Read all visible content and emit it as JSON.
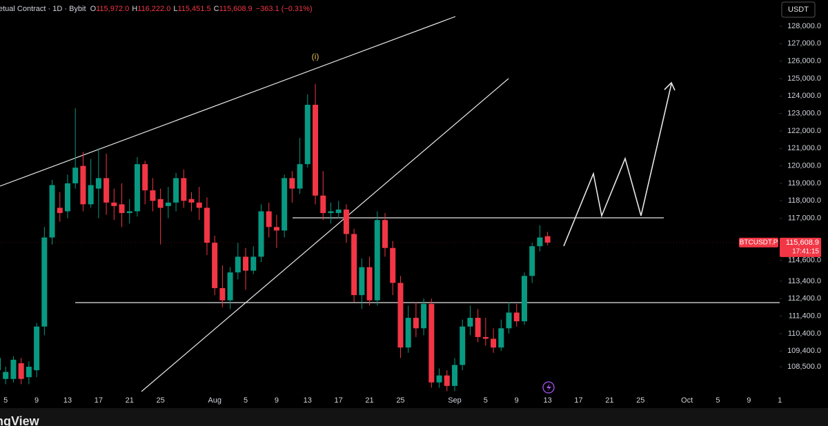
{
  "chart_data": {
    "type": "candlestick",
    "title": "etual Contract · 1D · Bybit",
    "ohlc_legend": [
      {
        "label": "O",
        "value": "115,972.0"
      },
      {
        "label": "H",
        "value": "116,222.0"
      },
      {
        "label": "L",
        "value": "115,451.5"
      },
      {
        "label": "C",
        "value": "115,608.9"
      }
    ],
    "change": "−363.1 (−0.31%)",
    "currency": "USDT",
    "symbol": "BTCUSDT.P",
    "last_price_label": "115,608.9",
    "countdown": "17:41:15",
    "annotation": "(i)",
    "watermark": "ngView",
    "up_color": "#089981",
    "down_color": "#f23645",
    "categories": [
      null,
      "5",
      null,
      null,
      null,
      "9",
      null,
      null,
      null,
      "13",
      null,
      null,
      null,
      "17",
      null,
      null,
      null,
      "21",
      null,
      null,
      null,
      "25",
      null,
      null,
      null,
      null,
      null,
      null,
      "Aug",
      null,
      null,
      null,
      "5",
      null,
      null,
      null,
      "9",
      null,
      null,
      null,
      "13",
      null,
      null,
      null,
      "17",
      null,
      null,
      null,
      "21",
      null,
      null,
      null,
      "25",
      null,
      null,
      null,
      null,
      null,
      null,
      "Sep",
      null,
      null,
      null,
      "5",
      null,
      null,
      null,
      "9",
      null,
      null,
      null,
      "13",
      null,
      null,
      null,
      "17",
      null,
      null,
      null,
      "21",
      null,
      null,
      null,
      "25",
      null,
      null,
      null,
      null,
      null,
      "Oct",
      null,
      null,
      null,
      "5",
      null,
      null,
      null,
      "9",
      null,
      null,
      null,
      "1"
    ],
    "open": [
      108300,
      107800,
      107800,
      108700,
      107900,
      108300,
      110800,
      115900,
      117600,
      117400,
      119000,
      120000,
      117800,
      118700,
      119300,
      117900,
      117800,
      117300,
      117400,
      120100,
      118600,
      118100,
      117700,
      117900,
      119300,
      118100,
      117900,
      117600,
      115600,
      113000,
      112300,
      113900,
      114800,
      114000,
      114800,
      117400,
      116500,
      116300,
      119300,
      118700,
      120100,
      123500,
      118300,
      117300,
      117300,
      117500,
      116100,
      112600,
      114200,
      112300,
      116900,
      115300,
      113300,
      109600,
      111300,
      110700,
      112100,
      107600,
      108000,
      107400,
      108600,
      110800,
      111300,
      110200,
      110100,
      109600,
      110700,
      111600,
      111100,
      113700,
      115400,
      115972,
      null,
      null,
      null,
      null,
      null,
      null,
      null,
      null,
      null,
      null,
      null,
      null,
      null,
      null,
      null,
      null,
      null,
      null,
      null,
      null,
      null,
      null,
      null,
      null,
      null,
      null,
      null,
      null,
      null,
      null
    ],
    "high": [
      109300,
      108500,
      109100,
      109000,
      108800,
      111000,
      116500,
      119200,
      118500,
      119500,
      123300,
      120800,
      120400,
      121000,
      120700,
      118700,
      119000,
      118100,
      120500,
      120300,
      119300,
      118700,
      118800,
      119600,
      119800,
      118500,
      118800,
      118200,
      116000,
      114300,
      114200,
      115600,
      115300,
      115400,
      117800,
      117900,
      117200,
      119500,
      119700,
      121600,
      124100,
      124700,
      119700,
      117900,
      118000,
      117800,
      116400,
      114700,
      114800,
      117400,
      117300,
      115700,
      113700,
      112000,
      112200,
      112400,
      112400,
      108400,
      108300,
      109000,
      111200,
      112000,
      111800,
      111300,
      110700,
      111200,
      112200,
      112100,
      113900,
      115600,
      116600,
      116222,
      null,
      null,
      null,
      null,
      null,
      null,
      null,
      null,
      null,
      null,
      null,
      null,
      null,
      null,
      null,
      null,
      null,
      null,
      null,
      null,
      null,
      null,
      null,
      null,
      null,
      null,
      null,
      null,
      null,
      null
    ],
    "low": [
      107700,
      107500,
      107600,
      107500,
      107500,
      107900,
      110300,
      115500,
      116800,
      117000,
      118700,
      117400,
      117600,
      117000,
      117200,
      116900,
      116500,
      116700,
      117100,
      117800,
      117400,
      115500,
      117000,
      117400,
      117600,
      117400,
      116900,
      114900,
      112600,
      111900,
      111800,
      113500,
      112900,
      113800,
      114500,
      115900,
      115300,
      115900,
      117900,
      118400,
      119900,
      117800,
      116900,
      116700,
      117000,
      115600,
      112200,
      111800,
      112000,
      112000,
      114800,
      112600,
      109000,
      109300,
      110200,
      110300,
      107300,
      107300,
      107100,
      107100,
      108300,
      110300,
      109900,
      109700,
      109300,
      109400,
      110400,
      110800,
      110900,
      113300,
      115100,
      115451.5,
      null,
      null,
      null,
      null,
      null,
      null,
      null,
      null,
      null,
      null,
      null,
      null,
      null,
      null,
      null,
      null,
      null,
      null,
      null,
      null,
      null,
      null,
      null,
      null,
      null,
      null,
      null,
      null,
      null,
      null
    ],
    "close": [
      109000,
      108200,
      108900,
      107800,
      108500,
      110800,
      115900,
      118900,
      117300,
      119000,
      119900,
      117800,
      118900,
      119300,
      117900,
      117700,
      117300,
      117400,
      120100,
      118600,
      118000,
      117600,
      117900,
      119300,
      118000,
      117900,
      117600,
      115600,
      113000,
      112300,
      113900,
      114800,
      114000,
      114800,
      117400,
      116500,
      116300,
      119300,
      118700,
      120100,
      123500,
      118300,
      117300,
      117400,
      117500,
      116100,
      112600,
      114200,
      112300,
      116900,
      115300,
      113300,
      109600,
      111300,
      110700,
      112100,
      107600,
      108000,
      107400,
      108600,
      110800,
      111300,
      110200,
      110100,
      109600,
      110700,
      111600,
      111100,
      113700,
      115400,
      115900,
      115608.9,
      null,
      null,
      null,
      null,
      null,
      null,
      null,
      null,
      null,
      null,
      null,
      null,
      null,
      null,
      null,
      null,
      null,
      null,
      null,
      null,
      null,
      null,
      null,
      null,
      null,
      null,
      null,
      null,
      null,
      null
    ],
    "ylim": [
      107000,
      129500
    ],
    "yticks": [
      {
        "value": 128000,
        "label": "128,000.0"
      },
      {
        "value": 127000,
        "label": "127,000.0"
      },
      {
        "value": 126000,
        "label": "126,000.0"
      },
      {
        "value": 125000,
        "label": "125,000.0"
      },
      {
        "value": 124000,
        "label": "124,000.0"
      },
      {
        "value": 123000,
        "label": "123,000.0"
      },
      {
        "value": 122000,
        "label": "122,000.0"
      },
      {
        "value": 121000,
        "label": "121,000.0"
      },
      {
        "value": 120000,
        "label": "120,000.0"
      },
      {
        "value": 119000,
        "label": "119,000.0"
      },
      {
        "value": 118000,
        "label": "118,000.0"
      },
      {
        "value": 117000,
        "label": "117,000.0"
      },
      {
        "value": 114600,
        "label": "114,600.0"
      },
      {
        "value": 113400,
        "label": "113,400.0"
      },
      {
        "value": 112400,
        "label": "112,400.0"
      },
      {
        "value": 111400,
        "label": "111,400.0"
      },
      {
        "value": 110400,
        "label": "110,400.0"
      },
      {
        "value": 109400,
        "label": "109,400.0"
      },
      {
        "value": 108500,
        "label": "108,500.0"
      }
    ],
    "grid": false
  }
}
